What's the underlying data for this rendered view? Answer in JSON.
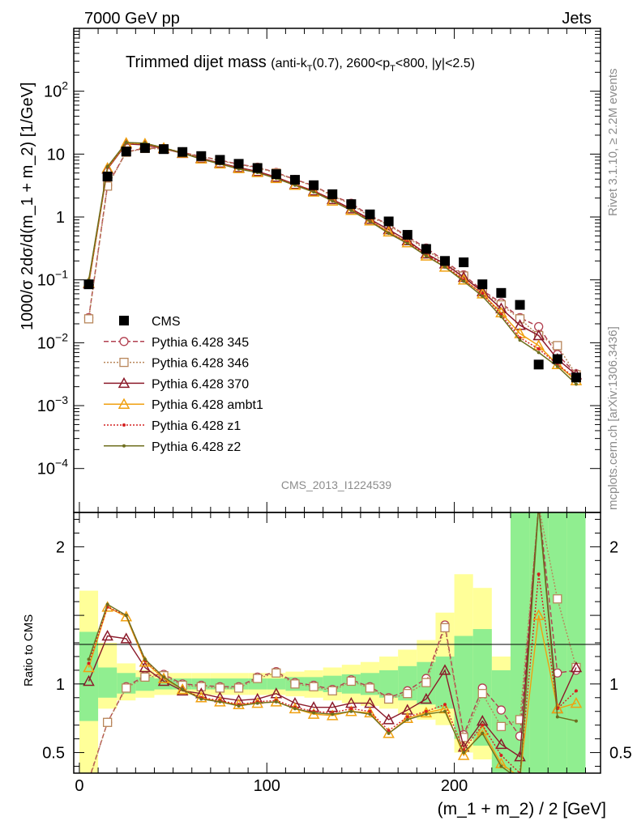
{
  "header": {
    "left": "7000 GeV pp",
    "right": "Jets"
  },
  "title": {
    "main": "Trimmed dijet mass",
    "sub": "(anti-kT(0.7), 2600<pT<800, |y|<2.5)"
  },
  "side_labels": {
    "rivet": "Rivet 3.1.10, ≥ 2.2M events",
    "mcplots": "mcplots.cern.ch [arXiv:1306.3436]"
  },
  "analysis_tag": "CMS_2013_I1224539",
  "colors": {
    "CMS": "#000000",
    "Pythia 6.428 345": "#b24050",
    "Pythia 6.428 346": "#b8865a",
    "Pythia 6.428 370": "#8b1a2a",
    "Pythia 6.428 ambt1": "#f0a010",
    "Pythia 6.428 z1": "#d42020",
    "Pythia 6.428 z2": "#6e6e1e",
    "band_inner": "#90ee90",
    "band_outer": "#ffff99"
  },
  "chart_data": [
    {
      "type": "line",
      "panel": "main",
      "ylabel": "1000/σ 2dσ/d(m_1 + m_2) [1/GeV]",
      "yscale": "log",
      "ylim": [
        2e-05,
        1000
      ],
      "xlim": [
        -3,
        278
      ],
      "y_ticks": [
        "10^-4",
        "10^-3",
        "10^-2",
        "10^-1",
        "1",
        "10",
        "10^2"
      ],
      "legend_position": "middle-left",
      "x": [
        5,
        15,
        25,
        35,
        45,
        55,
        65,
        75,
        85,
        95,
        105,
        115,
        125,
        135,
        145,
        155,
        165,
        175,
        185,
        195,
        205,
        215,
        225,
        235,
        245,
        255,
        265
      ],
      "series": [
        {
          "name": "CMS",
          "style": "data",
          "values": [
            0.085,
            4.4,
            11.0,
            12.5,
            12.0,
            10.8,
            9.3,
            8.1,
            7.0,
            6.0,
            4.8,
            3.9,
            3.2,
            2.3,
            1.6,
            1.1,
            0.85,
            0.52,
            0.31,
            0.2,
            0.19,
            0.085,
            0.062,
            0.04,
            0.0045,
            0.0055,
            0.0028
          ]
        },
        {
          "name": "Pythia 6.428 345",
          "style": "circle-dashed",
          "values": [
            0.025,
            3.2,
            10.8,
            12.5,
            12.3,
            10.6,
            9.2,
            8.0,
            6.9,
            6.2,
            5.1,
            3.95,
            3.15,
            2.2,
            1.65,
            1.05,
            0.76,
            0.49,
            0.32,
            0.2,
            0.12,
            0.068,
            0.043,
            0.025,
            0.018,
            0.0065,
            0.0032
          ]
        },
        {
          "name": "Pythia 6.428 346",
          "style": "square-dotted",
          "values": [
            0.024,
            3.1,
            10.7,
            12.3,
            12.1,
            10.5,
            9.1,
            7.9,
            6.8,
            6.1,
            5.0,
            3.9,
            3.1,
            2.15,
            1.6,
            1.0,
            0.75,
            0.47,
            0.3,
            0.19,
            0.115,
            0.065,
            0.04,
            0.024,
            0.013,
            0.009,
            0.0031
          ]
        },
        {
          "name": "Pythia 6.428 370",
          "style": "triangle-solid",
          "values": [
            0.087,
            5.8,
            14.5,
            14.0,
            12.2,
            10.3,
            8.6,
            7.2,
            6.1,
            5.3,
            4.3,
            3.3,
            2.6,
            1.9,
            1.35,
            0.92,
            0.63,
            0.42,
            0.26,
            0.18,
            0.11,
            0.065,
            0.035,
            0.019,
            0.013,
            0.0055,
            0.0031
          ]
        },
        {
          "name": "Pythia 6.428 ambt1",
          "style": "triangle-solid",
          "values": [
            0.09,
            6.0,
            15.0,
            14.6,
            12.5,
            10.4,
            8.4,
            7.0,
            5.9,
            5.1,
            4.1,
            3.2,
            2.5,
            1.8,
            1.28,
            0.87,
            0.58,
            0.39,
            0.24,
            0.16,
            0.1,
            0.06,
            0.03,
            0.014,
            0.009,
            0.0045,
            0.0025
          ]
        },
        {
          "name": "Pythia 6.428 z1",
          "style": "dot-dotted",
          "values": [
            0.095,
            6.1,
            15.2,
            14.8,
            12.6,
            10.5,
            8.4,
            7.1,
            5.9,
            5.2,
            4.2,
            3.3,
            2.6,
            1.85,
            1.3,
            0.88,
            0.56,
            0.4,
            0.25,
            0.17,
            0.1,
            0.06,
            0.028,
            0.012,
            0.008,
            0.0045,
            0.0027
          ]
        },
        {
          "name": "Pythia 6.428 z2",
          "style": "dot-solid",
          "values": [
            0.1,
            6.3,
            15.3,
            14.9,
            12.6,
            10.4,
            8.3,
            7.0,
            5.8,
            5.1,
            4.1,
            3.2,
            2.5,
            1.8,
            1.27,
            0.85,
            0.55,
            0.38,
            0.24,
            0.16,
            0.095,
            0.055,
            0.026,
            0.011,
            0.007,
            0.0042,
            0.0022
          ]
        }
      ]
    },
    {
      "type": "line",
      "panel": "ratio",
      "xlabel": "(m_1 + m_2) / 2 [GeV]",
      "ylabel": "Ratio to CMS",
      "ylim": [
        0.35,
        2.25
      ],
      "xlim": [
        -3,
        278
      ],
      "x_ticks": [
        0,
        100,
        200
      ],
      "y_ticks": [
        0.5,
        1,
        2
      ],
      "x": [
        5,
        15,
        25,
        35,
        45,
        55,
        65,
        75,
        85,
        95,
        105,
        115,
        125,
        135,
        145,
        155,
        165,
        175,
        185,
        195,
        205,
        215,
        225,
        235,
        245,
        255,
        265
      ],
      "bands": {
        "inner": [
          [
            0.73,
            1.38
          ],
          [
            0.9,
            1.12
          ],
          [
            0.93,
            1.08
          ],
          [
            0.95,
            1.05
          ],
          [
            0.96,
            1.04
          ],
          [
            0.96,
            1.04
          ],
          [
            0.96,
            1.04
          ],
          [
            0.96,
            1.04
          ],
          [
            0.96,
            1.04
          ],
          [
            0.96,
            1.04
          ],
          [
            0.96,
            1.04
          ],
          [
            0.95,
            1.05
          ],
          [
            0.95,
            1.05
          ],
          [
            0.94,
            1.06
          ],
          [
            0.93,
            1.07
          ],
          [
            0.92,
            1.08
          ],
          [
            0.9,
            1.1
          ],
          [
            0.88,
            1.13
          ],
          [
            0.85,
            1.16
          ],
          [
            0.82,
            1.2
          ],
          [
            0.6,
            1.35
          ],
          [
            0.55,
            1.4
          ],
          [
            0.35,
            1.1
          ],
          [
            0.35,
            2.25
          ],
          [
            0.35,
            2.25
          ],
          [
            0.35,
            2.25
          ],
          [
            0.35,
            2.25
          ]
        ],
        "outer": [
          [
            0.35,
            1.68
          ],
          [
            0.82,
            1.3
          ],
          [
            0.88,
            1.15
          ],
          [
            0.9,
            1.1
          ],
          [
            0.92,
            1.08
          ],
          [
            0.92,
            1.08
          ],
          [
            0.92,
            1.08
          ],
          [
            0.92,
            1.08
          ],
          [
            0.92,
            1.08
          ],
          [
            0.92,
            1.08
          ],
          [
            0.92,
            1.08
          ],
          [
            0.91,
            1.09
          ],
          [
            0.9,
            1.1
          ],
          [
            0.88,
            1.12
          ],
          [
            0.86,
            1.14
          ],
          [
            0.84,
            1.16
          ],
          [
            0.82,
            1.2
          ],
          [
            0.78,
            1.25
          ],
          [
            0.74,
            1.32
          ],
          [
            0.7,
            1.52
          ],
          [
            0.5,
            1.8
          ],
          [
            0.45,
            1.7
          ],
          [
            0.35,
            1.2
          ],
          [
            0.35,
            2.25
          ],
          [
            0.35,
            2.25
          ],
          [
            0.35,
            2.25
          ],
          [
            0.35,
            2.25
          ]
        ]
      },
      "series": [
        {
          "name": "Pythia 6.428 345",
          "values": [
            0.3,
            0.72,
            0.98,
            1.06,
            1.07,
            1.0,
            0.99,
            0.98,
            0.98,
            1.05,
            1.09,
            1.01,
            0.99,
            0.96,
            1.03,
            0.98,
            0.9,
            0.95,
            1.04,
            1.43,
            0.63,
            0.97,
            0.81,
            0.62,
            2.3,
            1.08,
            1.1
          ]
        },
        {
          "name": "Pythia 6.428 346",
          "values": [
            0.29,
            0.72,
            0.97,
            1.05,
            1.06,
            0.99,
            0.98,
            0.97,
            0.97,
            1.04,
            1.08,
            1.0,
            0.98,
            0.95,
            1.02,
            0.97,
            0.89,
            0.93,
            1.01,
            1.41,
            0.61,
            0.93,
            0.69,
            0.74,
            2.3,
            1.62,
            1.12
          ]
        },
        {
          "name": "Pythia 6.428 370",
          "values": [
            1.02,
            1.35,
            1.33,
            1.12,
            1.02,
            0.95,
            0.93,
            0.9,
            0.88,
            0.89,
            0.93,
            0.86,
            0.83,
            0.83,
            0.86,
            0.86,
            0.74,
            0.81,
            0.89,
            1.1,
            0.54,
            0.73,
            0.56,
            0.47,
            2.3,
            0.82,
            1.12
          ]
        },
        {
          "name": "Pythia 6.428 ambt1",
          "values": [
            1.12,
            1.56,
            1.49,
            1.16,
            1.04,
            0.96,
            0.9,
            0.87,
            0.85,
            0.86,
            0.87,
            0.82,
            0.78,
            0.77,
            0.8,
            0.79,
            0.64,
            0.75,
            0.79,
            0.82,
            0.48,
            0.66,
            0.42,
            0.32,
            1.5,
            0.82,
            0.86
          ]
        },
        {
          "name": "Pythia 6.428 z1",
          "values": [
            1.15,
            1.56,
            1.5,
            1.17,
            1.05,
            0.96,
            0.9,
            0.88,
            0.85,
            0.87,
            0.88,
            0.83,
            0.8,
            0.79,
            0.82,
            0.8,
            0.66,
            0.76,
            0.8,
            0.85,
            0.52,
            0.7,
            0.48,
            0.35,
            1.8,
            0.82,
            0.95
          ]
        },
        {
          "name": "Pythia 6.428 z2",
          "values": [
            1.18,
            1.58,
            1.5,
            1.18,
            1.05,
            0.96,
            0.89,
            0.87,
            0.84,
            0.86,
            0.87,
            0.82,
            0.79,
            0.78,
            0.8,
            0.78,
            0.64,
            0.74,
            0.78,
            0.8,
            0.5,
            0.64,
            0.4,
            0.3,
            2.3,
            0.76,
            0.73
          ]
        }
      ]
    }
  ]
}
